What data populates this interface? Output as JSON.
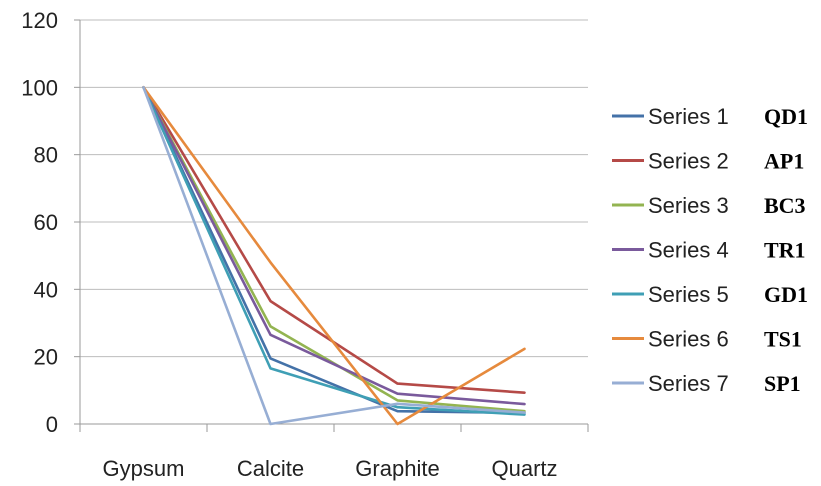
{
  "chart_data": {
    "type": "line",
    "categories": [
      "Gypsum",
      "Calcite",
      "Graphite",
      "Quartz"
    ],
    "ylim": [
      0,
      120
    ],
    "yticks": [
      0,
      20,
      40,
      60,
      80,
      100,
      120
    ],
    "grid": true,
    "legend_position": "right",
    "series": [
      {
        "name": "Series 1",
        "tag": "QD1",
        "color": "#4472a8",
        "values": [
          100,
          19.5,
          3.8,
          3.3
        ]
      },
      {
        "name": "Series 2",
        "tag": "AP1",
        "color": "#b54a47",
        "values": [
          100,
          36.5,
          12.0,
          9.3
        ]
      },
      {
        "name": "Series 3",
        "tag": "BC3",
        "color": "#93b451",
        "values": [
          100,
          29.0,
          7.0,
          3.8
        ]
      },
      {
        "name": "Series 4",
        "tag": "TR1",
        "color": "#7a5a9c",
        "values": [
          100,
          26.5,
          9.0,
          5.9
        ]
      },
      {
        "name": "Series 5",
        "tag": "GD1",
        "color": "#3f9fb5",
        "values": [
          100,
          16.5,
          5.0,
          2.8
        ]
      },
      {
        "name": "Series 6",
        "tag": "TS1",
        "color": "#e68a3d",
        "values": [
          100,
          48.0,
          0.0,
          22.3
        ]
      },
      {
        "name": "Series 7",
        "tag": "SP1",
        "color": "#97aed4",
        "values": [
          100,
          0.0,
          6.0,
          3.4
        ]
      }
    ]
  }
}
